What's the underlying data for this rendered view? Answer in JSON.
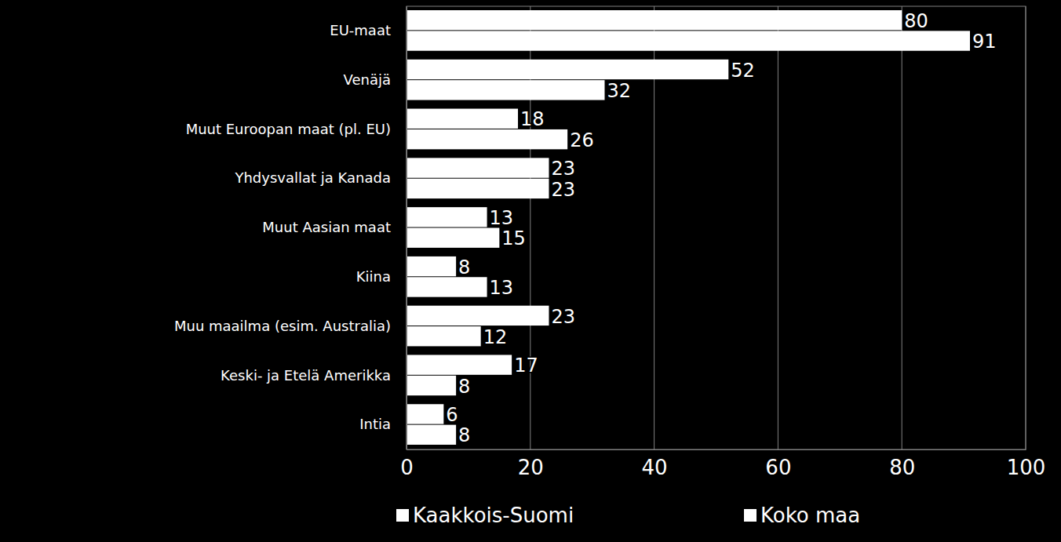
{
  "chart_data": {
    "type": "bar",
    "orientation": "horizontal",
    "categories": [
      "EU-maat",
      "Venäjä",
      "Muut Euroopan maat (pl. EU)",
      "Yhdysvallat ja Kanada",
      "Muut Aasian maat",
      "Kiina",
      "Muu maailma (esim. Australia)",
      "Keski- ja Etelä Amerikka",
      "Intia"
    ],
    "series": [
      {
        "name": "Kaakkois-Suomi",
        "color": "#ffffff",
        "values": [
          80,
          52,
          18,
          23,
          13,
          8,
          23,
          17,
          6
        ]
      },
      {
        "name": "Koko maa",
        "color": "#ffffff",
        "values": [
          91,
          32,
          26,
          23,
          15,
          13,
          12,
          8,
          8
        ]
      }
    ],
    "xlim": [
      0,
      100
    ],
    "xticks": [
      0,
      20,
      40,
      60,
      80,
      100
    ],
    "grid": true,
    "data_labels": true,
    "legend": "bottom"
  }
}
